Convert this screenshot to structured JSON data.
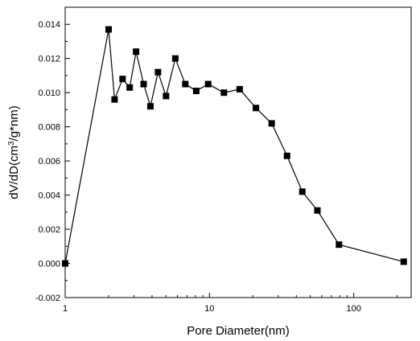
{
  "chart_data": {
    "type": "line",
    "xlabel": "Pore Diameter(nm)",
    "ylabel_parts": [
      "dV/dD(cm",
      "3",
      "/g*nm)"
    ],
    "x_scale": "log",
    "xlim": [
      1,
      250
    ],
    "ylim": [
      -0.002,
      0.015
    ],
    "x_ticks": [
      {
        "value": 1,
        "label": "1"
      },
      {
        "value": 10,
        "label": "10"
      },
      {
        "value": 100,
        "label": "100"
      }
    ],
    "y_ticks": [
      {
        "value": -0.002,
        "label": "-0.002"
      },
      {
        "value": 0.0,
        "label": "0.000"
      },
      {
        "value": 0.002,
        "label": "0.002"
      },
      {
        "value": 0.004,
        "label": "0.004"
      },
      {
        "value": 0.006,
        "label": "0.006"
      },
      {
        "value": 0.008,
        "label": "0.008"
      },
      {
        "value": 0.01,
        "label": "0.010"
      },
      {
        "value": 0.012,
        "label": "0.012"
      },
      {
        "value": 0.014,
        "label": "0.014"
      }
    ],
    "grid": false,
    "marker": "square",
    "series": [
      {
        "x": [
          1.0,
          2.0,
          2.2,
          2.5,
          2.8,
          3.1,
          3.5,
          3.9,
          4.4,
          5.0,
          5.8,
          6.8,
          8.1,
          9.8,
          12.6,
          16.2,
          21.0,
          27.0,
          34.5,
          44.0,
          56.0,
          79.0,
          222.0
        ],
        "y": [
          0.0,
          0.0137,
          0.0096,
          0.0108,
          0.0103,
          0.0124,
          0.0105,
          0.0092,
          0.0112,
          0.0098,
          0.012,
          0.0105,
          0.0101,
          0.0105,
          0.01,
          0.0102,
          0.0091,
          0.0082,
          0.0063,
          0.0042,
          0.0031,
          0.0011,
          0.0001
        ]
      }
    ]
  }
}
